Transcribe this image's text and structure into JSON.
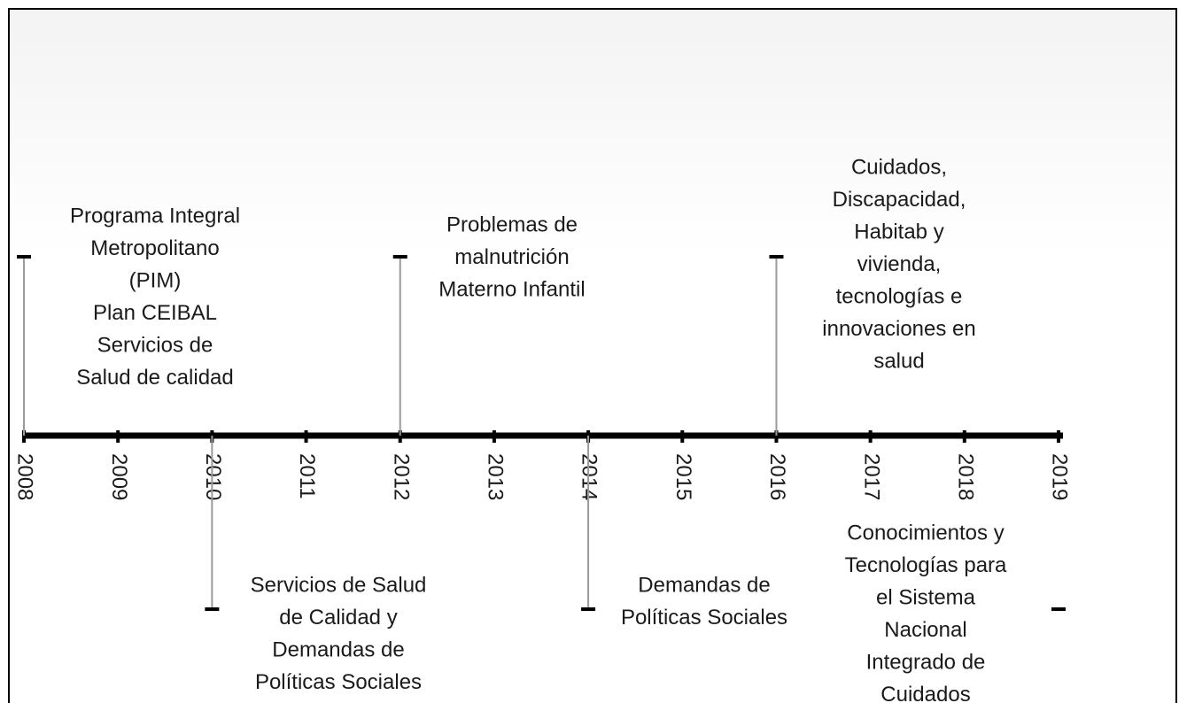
{
  "years": [
    "2008",
    "2009",
    "2010",
    "2011",
    "2012",
    "2013",
    "2014",
    "2015",
    "2016",
    "2017",
    "2018",
    "2019"
  ],
  "events": [
    {
      "lines": [
        "Programa Integral",
        "Metropolitano",
        "(PIM)",
        "Plan CEIBAL",
        "Servicios de",
        "Salud de calidad"
      ]
    },
    {
      "lines": [
        "Servicios de Salud",
        "de Calidad y",
        "Demandas de",
        "Políticas Sociales"
      ]
    },
    {
      "lines": [
        "Problemas de",
        "malnutrición",
        "Materno Infantil"
      ]
    },
    {
      "lines": [
        "Demandas de",
        "Políticas Sociales"
      ]
    },
    {
      "lines": [
        "Cuidados,",
        "Discapacidad,",
        "Habitab y",
        "vivienda,",
        "tecnologías e",
        "innovaciones en",
        "salud"
      ]
    },
    {
      "lines": [
        "Conocimientos y",
        "Tecnologías para",
        "el Sistema",
        "Nacional",
        "Integrado de",
        "Cuidados"
      ]
    }
  ]
}
